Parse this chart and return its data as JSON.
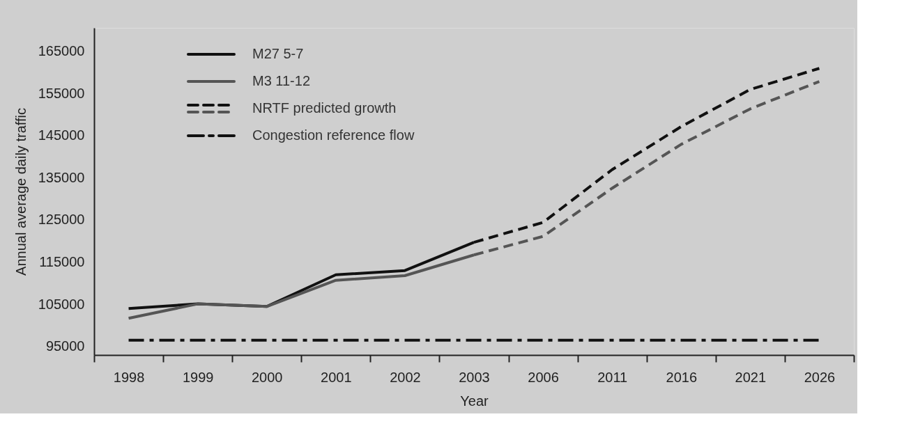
{
  "chart_data": {
    "type": "line",
    "categories": [
      "1998",
      "1999",
      "2000",
      "2001",
      "2002",
      "2003",
      "2006",
      "2011",
      "2016",
      "2021",
      "2026"
    ],
    "series": [
      {
        "name": "M27 5-7",
        "color": "#111111",
        "line_style": "solid",
        "values": [
          104000,
          105100,
          104500,
          112000,
          113000,
          119700,
          null,
          null,
          null,
          null,
          null
        ]
      },
      {
        "name": "M3 11-12",
        "color": "#555555",
        "line_style": "solid",
        "values": [
          101700,
          105100,
          104500,
          110700,
          111800,
          116700,
          null,
          null,
          null,
          null,
          null
        ]
      },
      {
        "name": "NRTF predicted growth",
        "color": "#111111",
        "line_style": "dashed",
        "values": [
          null,
          null,
          null,
          null,
          null,
          119700,
          124400,
          136900,
          147100,
          155900,
          160900
        ]
      },
      {
        "color": "#555555",
        "line_style": "dashed",
        "values": [
          null,
          null,
          null,
          null,
          null,
          116700,
          121100,
          132500,
          142900,
          151300,
          157800
        ]
      }
    ],
    "ref_lines": [
      {
        "axis": "y",
        "value": 96500,
        "label": "Congestion reference flow",
        "color": "#111111",
        "line_style": "dashdot"
      }
    ],
    "xlabel": "Year",
    "ylabel": "Annual average daily traffic",
    "ylim": [
      93000,
      170500
    ],
    "yticks": [
      95000,
      105000,
      115000,
      125000,
      135000,
      145000,
      155000,
      165000
    ],
    "grid": false,
    "legend": "top left",
    "marker": "none"
  }
}
